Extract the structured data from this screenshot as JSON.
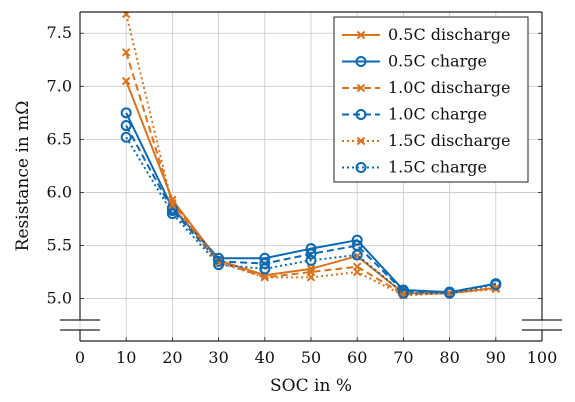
{
  "chart_data": {
    "type": "line",
    "title": "",
    "xlabel": "SOC in %",
    "ylabel": "Resistance in mΩ",
    "xlim": [
      0,
      100
    ],
    "ylim": [
      4.6,
      7.7
    ],
    "y_axis_break": true,
    "x_ticks": [
      0,
      10,
      20,
      30,
      40,
      50,
      60,
      70,
      80,
      90,
      100
    ],
    "x_tick_labels": [
      "0",
      "10",
      "20",
      "30",
      "40",
      "50",
      "60",
      "70",
      "80",
      "90",
      "100"
    ],
    "y_ticks": [
      5.0,
      5.5,
      6.0,
      6.5,
      7.0,
      7.5
    ],
    "y_tick_labels": [
      "5.0",
      "5.5",
      "6.0",
      "6.5",
      "7.0",
      "7.5"
    ],
    "grid": true,
    "legend_position": "top-right",
    "x": [
      10,
      20,
      30,
      40,
      50,
      60,
      70,
      80,
      90
    ],
    "series": [
      {
        "name": "0.5C discharge",
        "color": "#d9731f",
        "marker": "x",
        "line": "solid",
        "values": [
          7.05,
          5.93,
          5.36,
          5.22,
          5.28,
          5.4,
          5.05,
          5.05,
          5.1
        ]
      },
      {
        "name": "0.5C charge",
        "color": "#0d68b0",
        "marker": "o",
        "line": "solid",
        "values": [
          6.75,
          5.85,
          5.38,
          5.38,
          5.47,
          5.55,
          5.08,
          5.06,
          5.14
        ]
      },
      {
        "name": "1.0C discharge",
        "color": "#d9731f",
        "marker": "x",
        "line": "dashed",
        "values": [
          7.32,
          5.9,
          5.35,
          5.2,
          5.25,
          5.3,
          5.04,
          5.05,
          5.1
        ]
      },
      {
        "name": "1.0C charge",
        "color": "#0d68b0",
        "marker": "o",
        "line": "dashed",
        "values": [
          6.63,
          5.83,
          5.35,
          5.33,
          5.42,
          5.5,
          5.07,
          5.06,
          5.14
        ]
      },
      {
        "name": "1.5C discharge",
        "color": "#d9731f",
        "marker": "x",
        "line": "dotted",
        "values": [
          7.68,
          5.88,
          5.34,
          5.2,
          5.2,
          5.25,
          5.03,
          5.05,
          5.09
        ]
      },
      {
        "name": "1.5C charge",
        "color": "#0d68b0",
        "marker": "o",
        "line": "dotted",
        "values": [
          6.52,
          5.8,
          5.32,
          5.28,
          5.36,
          5.41,
          5.05,
          5.05,
          5.13
        ]
      }
    ]
  }
}
